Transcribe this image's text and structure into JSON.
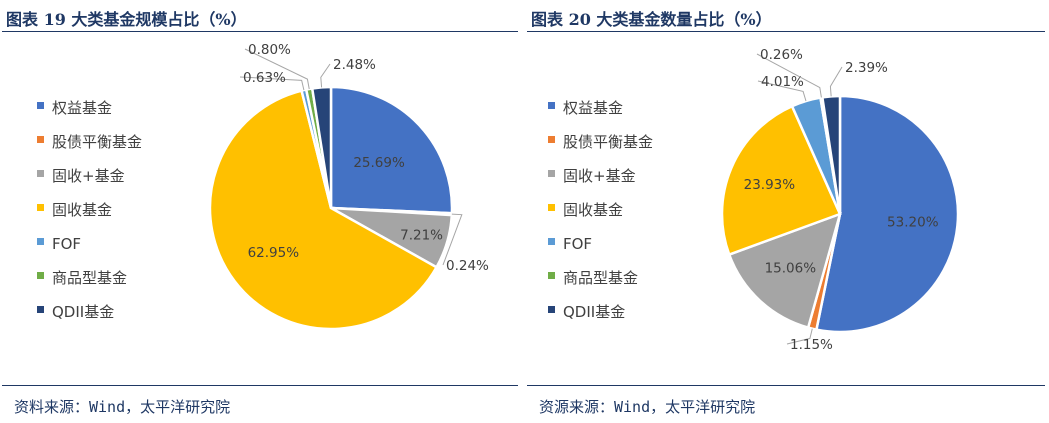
{
  "chart_data": [
    {
      "type": "pie",
      "title": "图表 19 大类基金规模占比（%）",
      "source": "资料来源：Wind，太平洋研究院",
      "legend_position": "left",
      "categories": [
        "权益基金",
        "股债平衡基金",
        "固收+基金",
        "固收基金",
        "FOF",
        "商品型基金",
        "QDII基金"
      ],
      "values": [
        25.69,
        0.24,
        7.21,
        62.95,
        0.63,
        0.8,
        2.48
      ],
      "value_labels": [
        "25.69%",
        "0.24%",
        "7.21%",
        "62.95%",
        "0.63%",
        "0.80%",
        "2.48%"
      ],
      "colors": [
        "#4472c4",
        "#ed7d31",
        "#a5a5a5",
        "#ffc000",
        "#5b9bd5",
        "#70ad47",
        "#264478"
      ]
    },
    {
      "type": "pie",
      "title": "图表 20 大类基金数量占比（%）",
      "source": "资源来源：Wind，太平洋研究院",
      "legend_position": "left",
      "categories": [
        "权益基金",
        "股债平衡基金",
        "固收+基金",
        "固收基金",
        "FOF",
        "商品型基金",
        "QDII基金"
      ],
      "values": [
        53.2,
        1.15,
        15.06,
        23.93,
        4.01,
        0.26,
        2.39
      ],
      "value_labels": [
        "53.20%",
        "1.15%",
        "15.06%",
        "23.93%",
        "4.01%",
        "0.26%",
        "2.39%"
      ],
      "colors": [
        "#4472c4",
        "#ed7d31",
        "#a5a5a5",
        "#ffc000",
        "#5b9bd5",
        "#70ad47",
        "#264478"
      ]
    }
  ]
}
